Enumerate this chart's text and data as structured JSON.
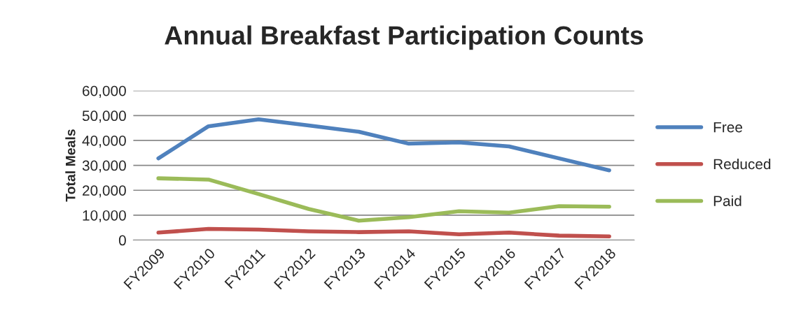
{
  "chart_data": {
    "type": "line",
    "title": "Annual Breakfast Participation Counts",
    "ylabel": "Total Meals",
    "categories": [
      "FY2009",
      "FY2010",
      "FY2011",
      "FY2012",
      "FY2013",
      "FY2014",
      "FY2015",
      "FY2016",
      "FY2017",
      "FY2018"
    ],
    "series": [
      {
        "name": "Free",
        "color": "#4f81bd",
        "values": [
          32800,
          45700,
          48500,
          46000,
          43500,
          38700,
          39200,
          37600,
          32800,
          28000
        ]
      },
      {
        "name": "Reduced",
        "color": "#c0504d",
        "values": [
          3000,
          4500,
          4200,
          3500,
          3200,
          3500,
          2300,
          3000,
          1800,
          1500
        ]
      },
      {
        "name": "Paid",
        "color": "#9bbb59",
        "values": [
          24800,
          24300,
          18500,
          12500,
          7800,
          9200,
          11600,
          11000,
          13600,
          13400
        ]
      }
    ],
    "ylim": [
      0,
      60000
    ],
    "yticks": [
      {
        "value": 0,
        "label": "0"
      },
      {
        "value": 10000,
        "label": "10,000"
      },
      {
        "value": 20000,
        "label": "20,000"
      },
      {
        "value": 30000,
        "label": "30,000"
      },
      {
        "value": 40000,
        "label": "40,000"
      },
      {
        "value": 50000,
        "label": "50,000"
      },
      {
        "value": 60000,
        "label": "60,000"
      }
    ],
    "grid": "y",
    "legend": "right",
    "marker": "none",
    "line_style": "solid"
  }
}
